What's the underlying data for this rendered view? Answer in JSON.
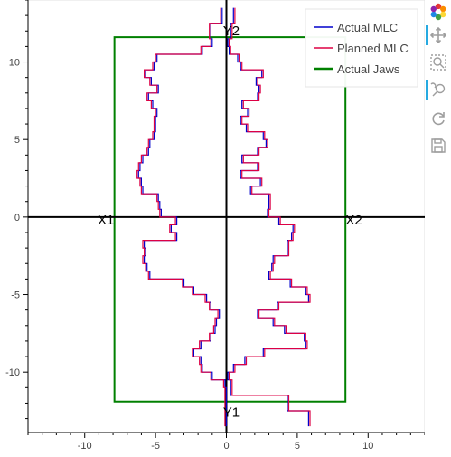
{
  "chart_data": {
    "type": "line",
    "title": "",
    "xlabel": "",
    "ylabel": "",
    "xlim": [
      -14.0,
      14.0
    ],
    "ylim": [
      -13.9,
      14.0
    ],
    "xticks": [
      -10,
      -5,
      0,
      5,
      10
    ],
    "yticks": [
      -10,
      -5,
      0,
      5,
      10
    ],
    "tick_labels_x": [
      "-10",
      "-5",
      "0",
      "5",
      "10"
    ],
    "tick_labels_y": [
      "-10",
      "-5",
      "0",
      "5",
      "10"
    ],
    "grid": false,
    "legend_position": "top-right",
    "axes_lines": {
      "x": 0,
      "y": 0
    },
    "annotations": [
      {
        "text": "X1",
        "x": -8.5,
        "y": 0
      },
      {
        "text": "X2",
        "x": 9.0,
        "y": 0
      },
      {
        "text": "Y2",
        "x": 0.35,
        "y": 12.2
      },
      {
        "text": "Y1",
        "x": 0.35,
        "y": -12.4
      }
    ],
    "jaws": {
      "x1": -7.9,
      "x2": 8.4,
      "y1": -11.9,
      "y2": 11.6
    },
    "leaf_boundaries": [
      -13.5,
      -12.5,
      -11.5,
      -11,
      -10.5,
      -10,
      -9.5,
      -9,
      -8.5,
      -8,
      -7.5,
      -7,
      -6.5,
      -6,
      -5.5,
      -5,
      -4.5,
      -4,
      -3.5,
      -3,
      -2.5,
      -2,
      -1.5,
      -1,
      -0.5,
      0,
      0.5,
      1,
      1.5,
      2,
      2.5,
      3,
      3.5,
      4,
      4.5,
      5,
      5.5,
      6,
      6.5,
      7,
      7.5,
      8,
      8.5,
      9,
      9.5,
      10,
      10.5,
      11,
      11.5,
      12.5,
      13.5
    ],
    "series": [
      {
        "name": "Actual MLC",
        "color": "#0000cc",
        "bank_a": [
          0.0,
          0.0,
          0.0,
          -0.1,
          -1.0,
          -1.7,
          -1.8,
          -2.3,
          -1.8,
          -1.1,
          -0.8,
          -0.7,
          -0.5,
          -1.1,
          -1.4,
          -2.3,
          -3.0,
          -5.4,
          -5.6,
          -5.8,
          -5.7,
          -5.8,
          -3.5,
          -3.9,
          -3.5,
          -4.6,
          -4.7,
          -4.8,
          -5.9,
          -6.0,
          -6.2,
          -6.1,
          -5.9,
          -5.5,
          -5.4,
          -5.1,
          -5.0,
          -5.0,
          -4.9,
          -5.2,
          -5.5,
          -4.8,
          -5.3,
          -5.7,
          -5.1,
          -4.9,
          -1.7,
          -1.0,
          -1.1,
          -0.3
        ],
        "bank_b": [
          5.8,
          4.3,
          0.3,
          0.3,
          0.1,
          0.5,
          1.3,
          2.6,
          5.6,
          5.5,
          4.1,
          3.3,
          2.2,
          3.6,
          5.8,
          5.6,
          4.5,
          3.0,
          3.2,
          3.3,
          4.3,
          4.3,
          4.6,
          4.7,
          3.7,
          2.9,
          3.0,
          3.0,
          1.7,
          2.4,
          1.0,
          2.2,
          1.1,
          2.2,
          2.8,
          2.6,
          1.4,
          1.0,
          1.5,
          1.1,
          2.2,
          2.3,
          2.1,
          2.5,
          1.0,
          0.8,
          0.2,
          0.1,
          0.3,
          0.5
        ]
      },
      {
        "name": "Planned MLC",
        "color": "#dd0044",
        "bank_a": [
          -0.1,
          -0.1,
          -0.1,
          -0.2,
          -1.1,
          -1.8,
          -1.9,
          -2.4,
          -1.9,
          -1.2,
          -0.9,
          -0.8,
          -0.6,
          -1.2,
          -1.5,
          -2.4,
          -3.1,
          -5.5,
          -5.7,
          -5.9,
          -5.8,
          -5.9,
          -3.6,
          -4.0,
          -3.6,
          -4.7,
          -4.8,
          -4.9,
          -6.0,
          -6.1,
          -6.3,
          -6.2,
          -6.0,
          -5.6,
          -5.5,
          -5.2,
          -5.1,
          -5.1,
          -5.0,
          -5.3,
          -5.6,
          -4.9,
          -5.4,
          -5.8,
          -5.2,
          -5.0,
          -1.8,
          -1.1,
          -1.2,
          -0.4
        ],
        "bank_b": [
          5.9,
          4.4,
          0.4,
          0.4,
          0.2,
          0.6,
          1.4,
          2.7,
          5.7,
          5.6,
          4.2,
          3.4,
          2.3,
          3.7,
          5.9,
          5.7,
          4.6,
          3.1,
          3.3,
          3.4,
          4.4,
          4.4,
          4.7,
          4.8,
          3.8,
          3.0,
          3.1,
          3.1,
          1.8,
          2.5,
          1.1,
          2.3,
          1.2,
          2.3,
          2.9,
          2.7,
          1.5,
          1.1,
          1.6,
          1.2,
          2.3,
          2.4,
          2.2,
          2.6,
          1.1,
          0.9,
          0.3,
          0.2,
          0.4,
          0.6
        ]
      },
      {
        "name": "Actual Jaws",
        "color": "#008000"
      }
    ]
  }
}
